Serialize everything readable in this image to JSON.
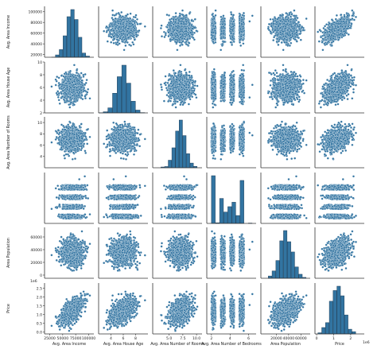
{
  "chart_data": {
    "type": "scatter",
    "subtype": "pairplot",
    "marker_color": "#3274a1",
    "edge_color": "#ffffff",
    "variables": [
      {
        "name": "Avg. Area Income",
        "range": [
          15000,
          110000
        ],
        "ticks": [
          20000,
          40000,
          60000,
          80000,
          100000
        ],
        "tick_labels": [
          "20000",
          "40000",
          "60000",
          "80000",
          "100000"
        ],
        "xticks": [
          25000,
          50000,
          75000,
          100000
        ],
        "xtick_labels": [
          "25000",
          "50000",
          "75000",
          "100000"
        ]
      },
      {
        "name": "Avg. Area House Age",
        "range": [
          2,
          10
        ],
        "ticks": [
          2,
          4,
          6,
          8,
          10
        ],
        "tick_labels": [
          "2",
          "4",
          "6",
          "8",
          "10"
        ],
        "xticks": [
          4,
          6,
          8
        ],
        "xtick_labels": [
          "4",
          "6",
          "8"
        ]
      },
      {
        "name": "Avg. Area Number of Rooms",
        "range": [
          2,
          11
        ],
        "ticks": [
          4,
          6,
          8,
          10
        ],
        "tick_labels": [
          "4",
          "6",
          "8",
          "10"
        ],
        "xticks": [
          5.0,
          7.5,
          10.0
        ],
        "xtick_labels": [
          "5.0",
          "7.5",
          "10.0"
        ]
      },
      {
        "name": "Avg. Area Number of Bedrooms",
        "range": [
          1.5,
          6.8
        ],
        "ticks": [
          2,
          3,
          4,
          5,
          6
        ],
        "tick_labels": [
          "2",
          "3",
          "4",
          "5",
          "6"
        ],
        "xticks": [
          2,
          4,
          6
        ],
        "xtick_labels": [
          "2",
          "4",
          "6"
        ]
      },
      {
        "name": "Area Population",
        "range": [
          -5000,
          75000
        ],
        "ticks": [
          0,
          20000,
          40000,
          60000
        ],
        "tick_labels": [
          "0",
          "20000",
          "40000",
          "60000"
        ],
        "xticks": [
          20000,
          40000,
          60000
        ],
        "xtick_labels": [
          "20000",
          "40000",
          "60000"
        ]
      },
      {
        "name": "Price",
        "range": [
          -0.1,
          2.8
        ],
        "ticks": [
          0.0,
          0.5,
          1.0,
          1.5,
          2.0,
          2.5
        ],
        "tick_labels": [
          "0.0",
          "0.5",
          "1.0",
          "1.5",
          "2.0",
          "2.5"
        ],
        "xticks": [
          0,
          1,
          2
        ],
        "xtick_labels": [
          "0",
          "1",
          "2"
        ],
        "offset_label": "1e6"
      }
    ],
    "sample_points": [
      [
        68583,
        5.68,
        7.01,
        3.25,
        36882,
        1.23
      ],
      [
        79545,
        5.68,
        7.01,
        4.09,
        23086,
        1.06
      ],
      [
        79249,
        6.0,
        6.73,
        3.09,
        40173,
        1.06
      ],
      [
        61287,
        5.87,
        8.51,
        5.13,
        36882,
        1.26
      ],
      [
        63345,
        7.19,
        5.59,
        3.26,
        34310,
        0.63
      ],
      [
        80176,
        4.99,
        6.1,
        4.04,
        26354,
        1.07
      ],
      [
        64698,
        6.03,
        8.15,
        3.41,
        60828,
        1.51
      ],
      [
        78394,
        6.99,
        6.62,
        2.42,
        36516,
        1.57
      ],
      [
        59927,
        5.36,
        6.39,
        2.3,
        29388,
        0.8
      ],
      [
        81885,
        4.42,
        8.17,
        6.1,
        40150,
        1.55
      ],
      [
        80527,
        8.09,
        5.04,
        4.1,
        47224,
        1.71
      ],
      [
        50593,
        5.34,
        7.2,
        4.23,
        34344,
        0.98
      ],
      [
        39033,
        7.67,
        7.25,
        3.1,
        39220,
        0.85
      ],
      [
        73163,
        6.92,
        5.99,
        2.27,
        32326,
        1.18
      ],
      [
        69010,
        5.63,
        6.46,
        2.1,
        41448,
        1.18
      ],
      [
        55620,
        4.55,
        4.93,
        2.41,
        29850,
        0.64
      ],
      [
        92475,
        6.41,
        7.74,
        6.4,
        52380,
        2.17
      ],
      [
        43826,
        6.52,
        6.8,
        3.48,
        35190,
        0.72
      ],
      [
        70211,
        3.22,
        5.62,
        2.44,
        21940,
        0.64
      ],
      [
        62914,
        5.98,
        8.86,
        4.45,
        45080,
        1.39
      ]
    ]
  }
}
